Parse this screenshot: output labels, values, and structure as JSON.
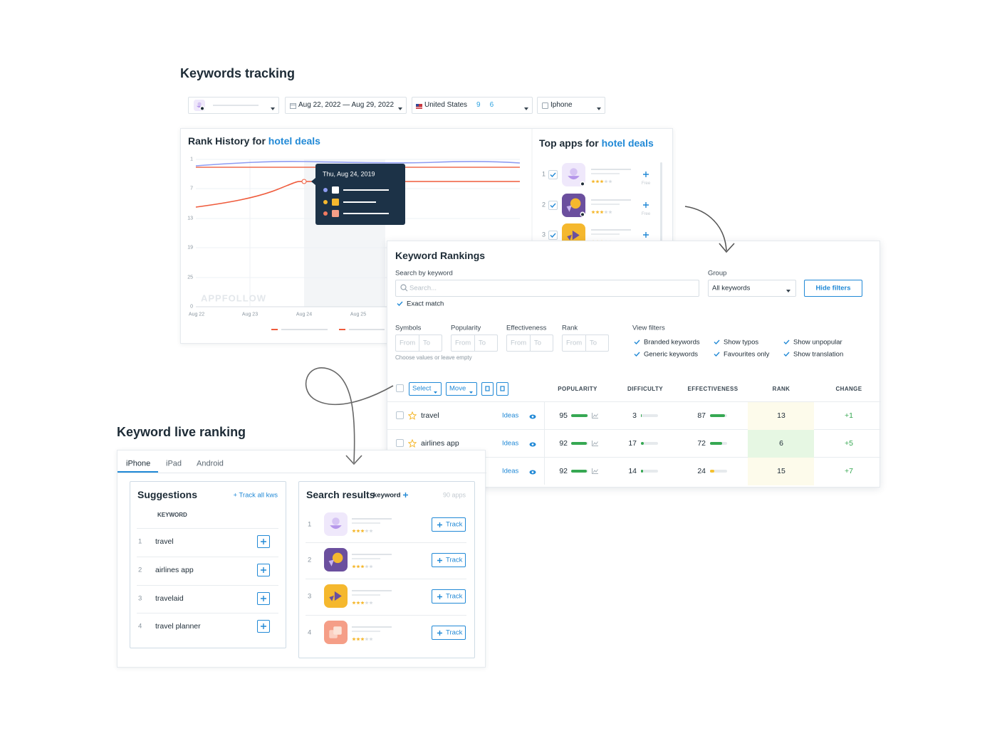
{
  "header": {
    "title": "Keywords tracking"
  },
  "filters": {
    "date_range": "Aug 22, 2022 — Aug 29, 2022",
    "country": "United States",
    "ios_count": 9,
    "android_count": 6,
    "device": "Iphone"
  },
  "rank_history": {
    "title": "Rank History for",
    "keyword": "hotel deals",
    "y_ticks": [
      1,
      7,
      13,
      19,
      25,
      0
    ],
    "x_ticks": [
      "Aug 22",
      "Aug 23",
      "Aug 24",
      "Aug 25"
    ],
    "watermark": "APPFOLLOW",
    "tooltip_date": "Thu, Aug 24, 2019"
  },
  "top_apps": {
    "title": "Top apps for",
    "keyword": "hotel deals",
    "rows": [
      {
        "rank": 1,
        "price": "Free"
      },
      {
        "rank": 2,
        "price": "Free"
      },
      {
        "rank": 3
      }
    ]
  },
  "keyword_rankings": {
    "title": "Keyword Rankings",
    "search_label": "Search by keyword",
    "search_placeholder": "Search...",
    "group_label": "Group",
    "group_value": "All keywords",
    "hide_filters": "Hide filters",
    "exact_match": "Exact match",
    "ranges": [
      {
        "label": "Symbols",
        "from": "From",
        "to": "To"
      },
      {
        "label": "Popularity",
        "from": "From",
        "to": "To"
      },
      {
        "label": "Effectiveness",
        "from": "From",
        "to": "To"
      },
      {
        "label": "Rank",
        "from": "From",
        "to": "To"
      }
    ],
    "range_hint": "Choose values or leave empty",
    "view_filters": {
      "label": "View filters",
      "options": [
        "Branded keywords",
        "Show typos",
        "Show unpopular",
        "Generic keywords",
        "Favourites only",
        "Show translation"
      ]
    },
    "toolbar": {
      "select": "Select",
      "move": "Move"
    },
    "columns": [
      "POPULARITY",
      "DIFFICULTY",
      "EFFECTIVENESS",
      "RANK",
      "CHANGE"
    ],
    "rows": [
      {
        "keyword": "travel",
        "ideas": "Ideas",
        "popularity": 95,
        "difficulty": 3,
        "effectiveness": 87,
        "rank": 13,
        "change": "+1"
      },
      {
        "keyword": "airlines app",
        "ideas": "Ideas",
        "popularity": 92,
        "difficulty": 17,
        "effectiveness": 72,
        "rank": 6,
        "change": "+5"
      },
      {
        "ideas": "Ideas",
        "popularity": 92,
        "difficulty": 14,
        "effectiveness": 24,
        "rank": 15,
        "change": "+7"
      }
    ]
  },
  "live_ranking": {
    "title": "Keyword live ranking",
    "tabs": [
      "iPhone",
      "iPad",
      "Android"
    ],
    "suggestions": {
      "title": "Suggestions",
      "track_all": "+ Track all kws",
      "column": "KEYWORD",
      "rows": [
        {
          "rank": 1,
          "keyword": "travel"
        },
        {
          "rank": 2,
          "keyword": "airlines app"
        },
        {
          "rank": 3,
          "keyword": "travelaid"
        },
        {
          "rank": 4,
          "keyword": "travel planner"
        }
      ]
    },
    "search_results": {
      "title": "Search results",
      "keyword": "keyword",
      "count": "90 apps",
      "rows": [
        {
          "rank": 1,
          "action": "Track"
        },
        {
          "rank": 2,
          "action": "Track"
        },
        {
          "rank": 3,
          "action": "Track"
        },
        {
          "rank": 4,
          "action": "Track"
        }
      ]
    }
  }
}
